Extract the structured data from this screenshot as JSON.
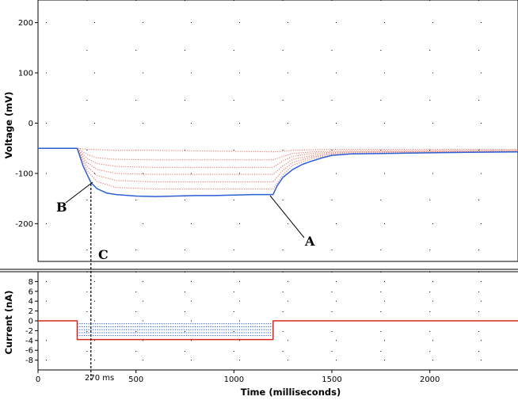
{
  "chart_data": [
    {
      "type": "line",
      "panel": "voltage",
      "title": "",
      "xlabel": "",
      "ylabel": "Voltage (mV)",
      "xlim": [
        0,
        2450
      ],
      "ylim": [
        -275,
        245
      ],
      "yticks": [
        200,
        100,
        0,
        -100,
        -200
      ],
      "grid": "dotted",
      "series": [
        {
          "color": "#e87a6a",
          "style": "dotted",
          "x": [
            0,
            200,
            250,
            400,
            600,
            800,
            1000,
            1200,
            1250,
            1300,
            1400,
            1500,
            1600,
            2000,
            2450
          ],
          "y": [
            -50,
            -50,
            -52,
            -54,
            -54,
            -55,
            -56,
            -57,
            -56,
            -54,
            -53,
            -52,
            -52,
            -52,
            -52
          ]
        },
        {
          "color": "#e87a6a",
          "style": "dotted",
          "x": [
            0,
            200,
            250,
            300,
            400,
            600,
            800,
            1000,
            1200,
            1250,
            1300,
            1400,
            1500,
            1600,
            2000,
            2450
          ],
          "y": [
            -50,
            -50,
            -62,
            -69,
            -72,
            -73,
            -73,
            -73,
            -73,
            -66,
            -60,
            -57,
            -56,
            -55,
            -55,
            -54
          ]
        },
        {
          "color": "#e87a6a",
          "style": "dotted",
          "x": [
            0,
            200,
            250,
            300,
            400,
            600,
            800,
            1000,
            1200,
            1250,
            1300,
            1400,
            1500,
            1600,
            2000,
            2450
          ],
          "y": [
            -50,
            -50,
            -70,
            -80,
            -86,
            -88,
            -88,
            -88,
            -88,
            -75,
            -66,
            -60,
            -58,
            -57,
            -56,
            -55
          ]
        },
        {
          "color": "#e87a6a",
          "style": "dotted",
          "x": [
            0,
            200,
            250,
            300,
            400,
            600,
            800,
            1000,
            1200,
            1250,
            1300,
            1400,
            1500,
            1600,
            2000,
            2450
          ],
          "y": [
            -50,
            -50,
            -78,
            -92,
            -100,
            -102,
            -102,
            -102,
            -102,
            -85,
            -72,
            -64,
            -60,
            -58,
            -57,
            -56
          ]
        },
        {
          "color": "#e87a6a",
          "style": "dotted",
          "x": [
            0,
            200,
            250,
            300,
            400,
            600,
            800,
            1000,
            1200,
            1250,
            1300,
            1400,
            1500,
            1600,
            2000,
            2450
          ],
          "y": [
            -50,
            -50,
            -86,
            -104,
            -114,
            -117,
            -117,
            -117,
            -117,
            -94,
            -78,
            -67,
            -62,
            -60,
            -58,
            -57
          ]
        },
        {
          "color": "#e87a6a",
          "style": "dotted",
          "x": [
            0,
            200,
            250,
            300,
            400,
            600,
            800,
            1000,
            1200,
            1250,
            1300,
            1400,
            1500,
            1600,
            2000,
            2450
          ],
          "y": [
            -50,
            -50,
            -94,
            -116,
            -128,
            -131,
            -131,
            -131,
            -131,
            -103,
            -84,
            -70,
            -64,
            -61,
            -59,
            -57
          ]
        },
        {
          "color": "#2b5fd6",
          "style": "solid",
          "x": [
            0,
            200,
            230,
            270,
            300,
            350,
            400,
            500,
            600,
            700,
            800,
            900,
            1000,
            1100,
            1200,
            1220,
            1250,
            1300,
            1350,
            1400,
            1450,
            1500,
            1600,
            1800,
            2000,
            2200,
            2450
          ],
          "y": [
            -50,
            -50,
            -85,
            -118,
            -130,
            -139,
            -142,
            -145,
            -146,
            -145,
            -144,
            -144,
            -143,
            -142,
            -142,
            -125,
            -108,
            -92,
            -82,
            -75,
            -69,
            -64,
            -61,
            -60,
            -59,
            -58,
            -57
          ]
        }
      ]
    },
    {
      "type": "line",
      "panel": "current",
      "title": "",
      "xlabel": "Time (milliseconds)",
      "ylabel": "Current (nA)",
      "xlim": [
        0,
        2450
      ],
      "ylim": [
        -10,
        10
      ],
      "yticks": [
        8,
        6,
        4,
        2,
        0,
        -2,
        -4,
        -6,
        -8
      ],
      "xticks": [
        0,
        500,
        1000,
        1500,
        2000
      ],
      "grid": "dotted",
      "series": [
        {
          "color": "#2b5fd6",
          "style": "dotted",
          "x": [
            200,
            1200
          ],
          "y": [
            -0.6,
            -0.6
          ]
        },
        {
          "color": "#2b5fd6",
          "style": "dotted",
          "x": [
            200,
            1200
          ],
          "y": [
            -1.2,
            -1.2
          ]
        },
        {
          "color": "#2b5fd6",
          "style": "dotted",
          "x": [
            200,
            1200
          ],
          "y": [
            -1.8,
            -1.8
          ]
        },
        {
          "color": "#2b5fd6",
          "style": "dotted",
          "x": [
            200,
            1200
          ],
          "y": [
            -2.4,
            -2.4
          ]
        },
        {
          "color": "#2b5fd6",
          "style": "dotted",
          "x": [
            200,
            1200
          ],
          "y": [
            -3.0,
            -3.0
          ]
        },
        {
          "color": "#d9261c",
          "style": "solid",
          "x": [
            0,
            200,
            200,
            1200,
            1200,
            2450
          ],
          "y": [
            0,
            0,
            -3.8,
            -3.8,
            0,
            0
          ]
        }
      ]
    }
  ],
  "annotations": {
    "A": "A",
    "B": "B",
    "C": "C"
  },
  "marker": {
    "x_ms": 270,
    "label": "270 ms"
  }
}
